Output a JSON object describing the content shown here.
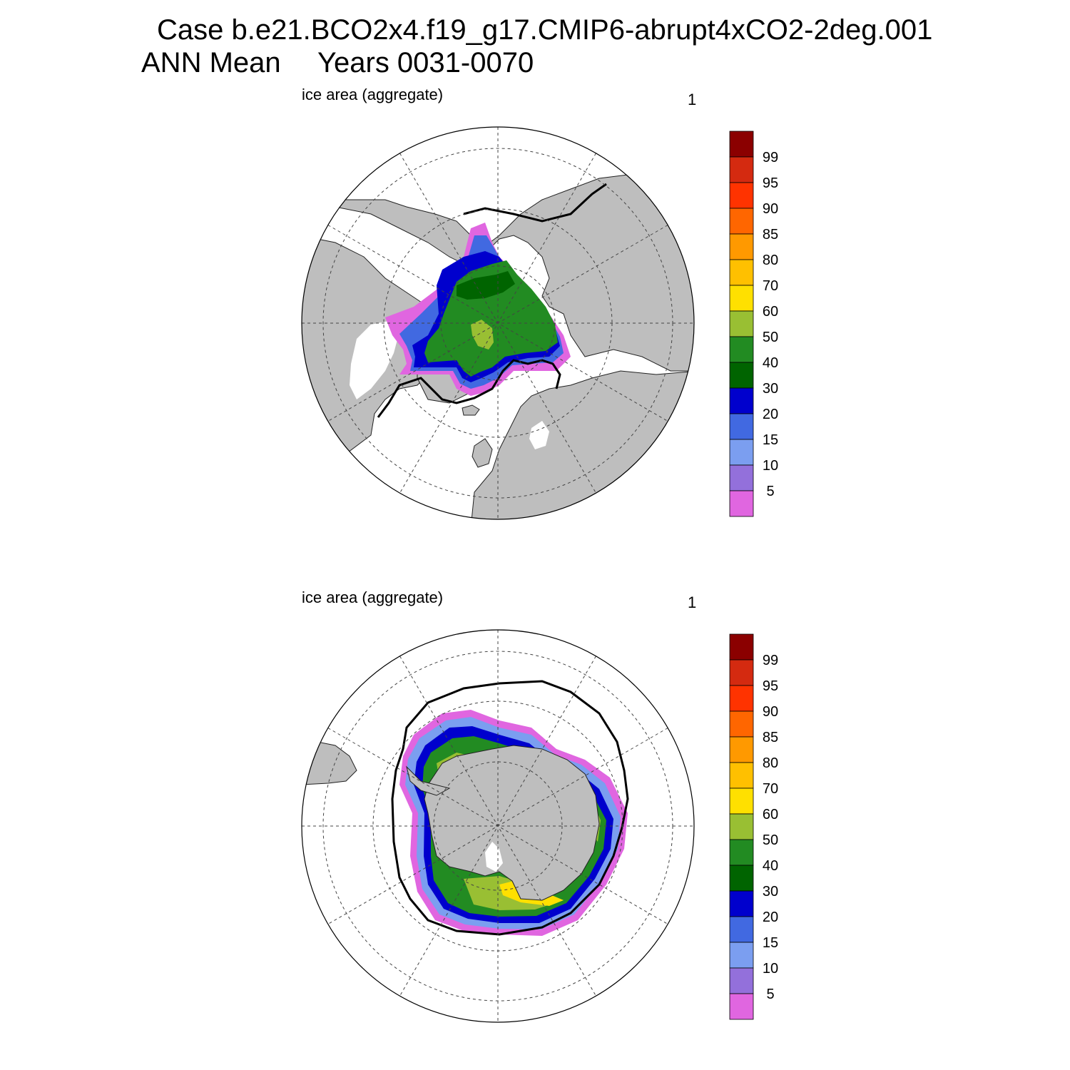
{
  "header": {
    "case_line": "Case b.e21.BCO2x4.f19_g17.CMIP6-abrupt4xCO2-2deg.001",
    "period_label": "ANN Mean",
    "years_label": "Years 0031-0070"
  },
  "panels": [
    {
      "id": "north",
      "variable_label": "ice area  (aggregate)",
      "units_label": "1",
      "hemisphere": "Northern"
    },
    {
      "id": "south",
      "variable_label": "ice area  (aggregate)",
      "units_label": "1",
      "hemisphere": "Southern"
    }
  ],
  "colorbar": {
    "tick_labels": [
      "99",
      "95",
      "90",
      "85",
      "80",
      "70",
      "60",
      "50",
      "40",
      "30",
      "20",
      "15",
      "10",
      "5"
    ],
    "colors_top_to_bottom": [
      "#8b0000",
      "#d42a10",
      "#ff3300",
      "#ff6600",
      "#ff9900",
      "#ffc000",
      "#ffe000",
      "#99bf33",
      "#228b22",
      "#006400",
      "#0000cd",
      "#4169e1",
      "#7b9ef0",
      "#9370db",
      "#e066e0"
    ]
  },
  "map_colors": {
    "land": "#bebebe",
    "ocean": "#ffffff",
    "ice_edge_line": "#000000"
  }
}
